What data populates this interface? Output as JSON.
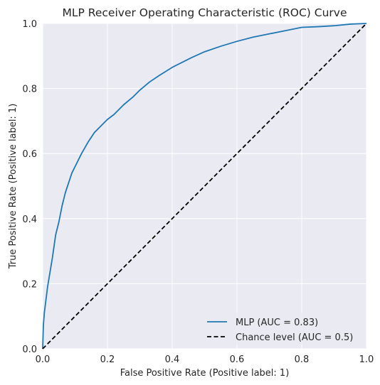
{
  "chart_data": {
    "type": "line",
    "title": "MLP Receiver Operating Characteristic (ROC) Curve",
    "xlabel": "False Positive Rate (Positive label: 1)",
    "ylabel": "True Positive Rate (Positive label: 1)",
    "xlim": [
      0.0,
      1.0
    ],
    "ylim": [
      0.0,
      1.0
    ],
    "xticks": [
      "0.0",
      "0.2",
      "0.4",
      "0.6",
      "0.8",
      "1.0"
    ],
    "yticks": [
      "0.0",
      "0.2",
      "0.4",
      "0.6",
      "0.8",
      "1.0"
    ],
    "grid": true,
    "legend_position": "lower-right",
    "series": [
      {
        "name": "MLP (AUC = 0.83)",
        "color": "#1f77b4",
        "style": "solid",
        "x": [
          0.0,
          0.002,
          0.005,
          0.01,
          0.015,
          0.02,
          0.03,
          0.04,
          0.05,
          0.06,
          0.07,
          0.08,
          0.09,
          0.1,
          0.12,
          0.14,
          0.16,
          0.18,
          0.2,
          0.22,
          0.25,
          0.28,
          0.3,
          0.33,
          0.36,
          0.4,
          0.43,
          0.46,
          0.5,
          0.55,
          0.6,
          0.65,
          0.7,
          0.75,
          0.8,
          0.85,
          0.9,
          0.95,
          1.0
        ],
        "y": [
          0.0,
          0.07,
          0.11,
          0.15,
          0.19,
          0.22,
          0.28,
          0.35,
          0.39,
          0.44,
          0.48,
          0.51,
          0.54,
          0.56,
          0.6,
          0.635,
          0.665,
          0.685,
          0.705,
          0.72,
          0.75,
          0.775,
          0.795,
          0.82,
          0.84,
          0.865,
          0.88,
          0.895,
          0.913,
          0.93,
          0.945,
          0.958,
          0.968,
          0.978,
          0.988,
          0.99,
          0.993,
          0.998,
          1.0
        ]
      },
      {
        "name": "Chance level (AUC = 0.5)",
        "color": "#000000",
        "style": "dashed",
        "x": [
          0.0,
          1.0
        ],
        "y": [
          0.0,
          1.0
        ]
      }
    ]
  }
}
